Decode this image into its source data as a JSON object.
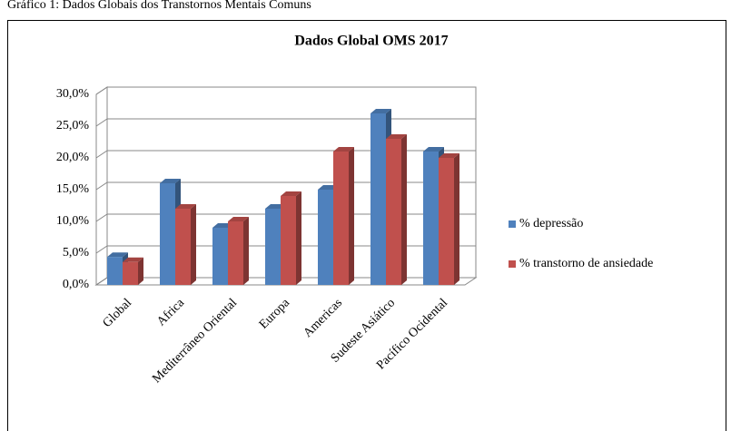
{
  "caption": "Gráfico 1: Dados Globais dos Transtornos Mentais Comuns",
  "chart_data": {
    "type": "bar3d",
    "title": "Dados Global OMS 2017",
    "categories": [
      "Global",
      "Africa",
      "Mediterrâneo Oriental",
      "Europa",
      "Americas",
      "Sudeste Asiático",
      "Pacífico Ocidental"
    ],
    "series": [
      {
        "name": "% depressão",
        "color": "#4f81bd",
        "values": [
          4.4,
          16,
          9,
          12,
          15,
          27,
          21
        ]
      },
      {
        "name": "% transtorno de ansiedade",
        "color": "#c0504d",
        "values": [
          3.6,
          12,
          10,
          14,
          21,
          23,
          20
        ]
      }
    ],
    "ylim": [
      0,
      30
    ],
    "yticks": [
      {
        "value": 0,
        "label": "0,0%"
      },
      {
        "value": 5,
        "label": "5,0%"
      },
      {
        "value": 10,
        "label": "10,0%"
      },
      {
        "value": 15,
        "label": "15,0%"
      },
      {
        "value": 20,
        "label": "20,0%"
      },
      {
        "value": 25,
        "label": "25,0%"
      },
      {
        "value": 30,
        "label": "30,0%"
      }
    ],
    "grid": true,
    "legend": "right"
  }
}
